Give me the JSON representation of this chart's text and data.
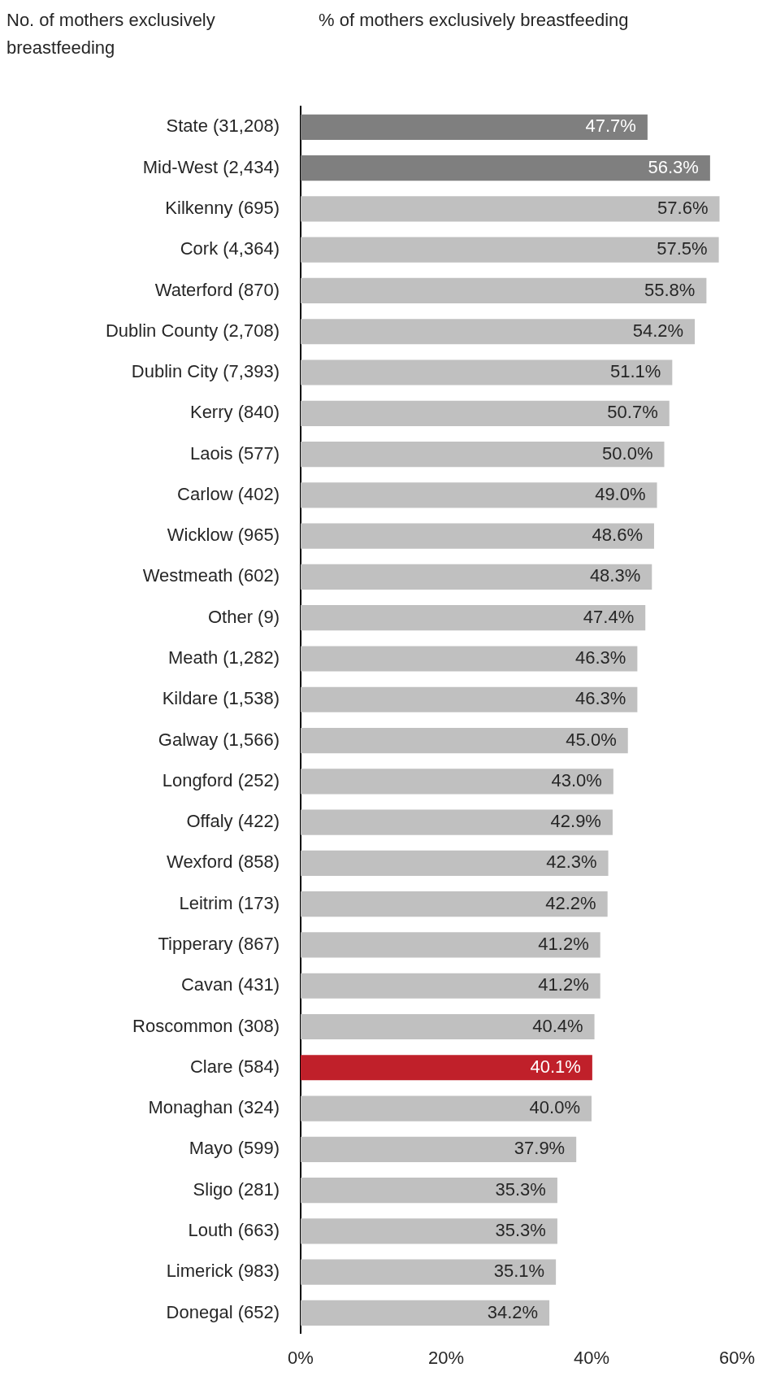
{
  "chart_data": {
    "type": "bar",
    "orientation": "horizontal",
    "ylabel": "No. of mothers exclusively breastfeeding",
    "xlabel": "% of mothers exclusively breastfeeding",
    "categories": [
      "State (31,208)",
      "Mid-West (2,434)",
      "Kilkenny (695)",
      "Cork (4,364)",
      "Waterford (870)",
      "Dublin County (2,708)",
      "Dublin City (7,393)",
      "Kerry (840)",
      "Laois (577)",
      "Carlow (402)",
      "Wicklow (965)",
      "Westmeath (602)",
      "Other (9)",
      "Meath (1,282)",
      "Kildare (1,538)",
      "Galway (1,566)",
      "Longford (252)",
      "Offaly (422)",
      "Wexford (858)",
      "Leitrim (173)",
      "Tipperary (867)",
      "Cavan (431)",
      "Roscommon (308)",
      "Clare (584)",
      "Monaghan (324)",
      "Mayo (599)",
      "Sligo (281)",
      "Louth (663)",
      "Limerick (983)",
      "Donegal (652)"
    ],
    "values": [
      47.7,
      56.3,
      57.6,
      57.5,
      55.8,
      54.2,
      51.1,
      50.7,
      50.0,
      49.0,
      48.6,
      48.3,
      47.4,
      46.3,
      46.3,
      45.0,
      43.0,
      42.9,
      42.3,
      42.2,
      41.2,
      41.2,
      40.4,
      40.1,
      40.0,
      37.9,
      35.3,
      35.3,
      35.1,
      34.2
    ],
    "value_labels": [
      "47.7%",
      "56.3%",
      "57.6%",
      "57.5%",
      "55.8%",
      "54.2%",
      "51.1%",
      "50.7%",
      "50.0%",
      "49.0%",
      "48.6%",
      "48.3%",
      "47.4%",
      "46.3%",
      "46.3%",
      "45.0%",
      "43.0%",
      "42.9%",
      "42.3%",
      "42.2%",
      "41.2%",
      "41.2%",
      "40.4%",
      "40.1%",
      "40.0%",
      "37.9%",
      "35.3%",
      "35.3%",
      "35.1%",
      "34.2%"
    ],
    "colors": [
      "#7f7f7f",
      "#7f7f7f",
      "#c0c0c0",
      "#c0c0c0",
      "#c0c0c0",
      "#c0c0c0",
      "#c0c0c0",
      "#c0c0c0",
      "#c0c0c0",
      "#c0c0c0",
      "#c0c0c0",
      "#c0c0c0",
      "#c0c0c0",
      "#c0c0c0",
      "#c0c0c0",
      "#c0c0c0",
      "#c0c0c0",
      "#c0c0c0",
      "#c0c0c0",
      "#c0c0c0",
      "#c0c0c0",
      "#c0c0c0",
      "#c0c0c0",
      "#c0202a",
      "#c0c0c0",
      "#c0c0c0",
      "#c0c0c0",
      "#c0c0c0",
      "#c0c0c0",
      "#c0c0c0"
    ],
    "xlim": [
      0,
      60
    ],
    "xticks": [
      {
        "value": 0,
        "label": "0%"
      },
      {
        "value": 20,
        "label": "20%"
      },
      {
        "value": 40,
        "label": "40%"
      },
      {
        "value": 60,
        "label": "60%"
      }
    ],
    "grid": false,
    "legend": false
  }
}
